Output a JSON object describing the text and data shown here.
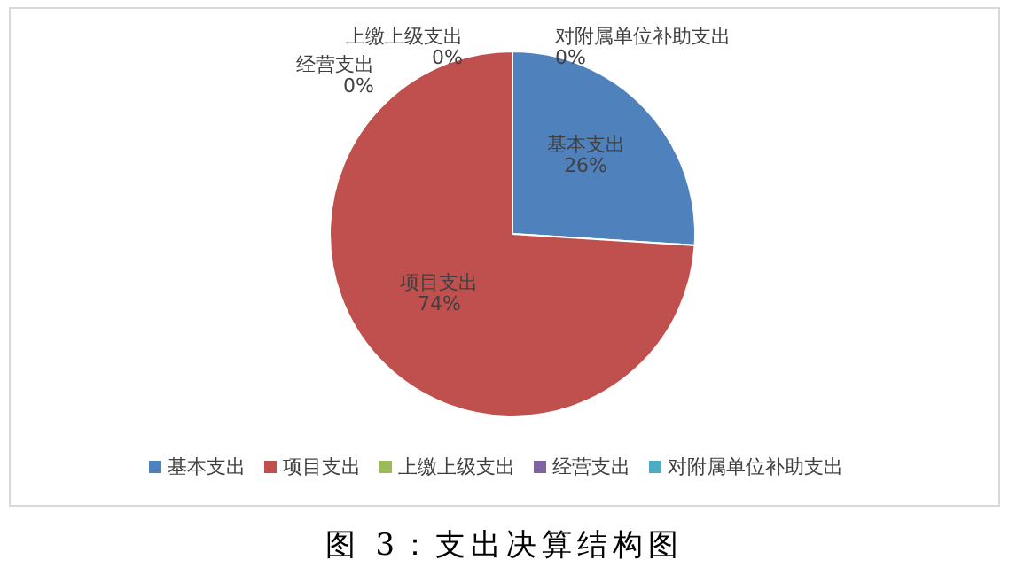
{
  "chart_data": {
    "type": "pie",
    "title": "图 3：支出决算结构图",
    "categories": [
      "基本支出",
      "项目支出",
      "上缴上级支出",
      "经营支出",
      "对附属单位补助支出"
    ],
    "values": [
      26,
      74,
      0,
      0,
      0
    ],
    "colors": [
      "#4f81bd",
      "#c0504d",
      "#9bbb59",
      "#8064a2",
      "#4bacc6"
    ],
    "value_labels": [
      "26%",
      "74%",
      "0%",
      "0%",
      "0%"
    ],
    "legend": "bottom"
  }
}
